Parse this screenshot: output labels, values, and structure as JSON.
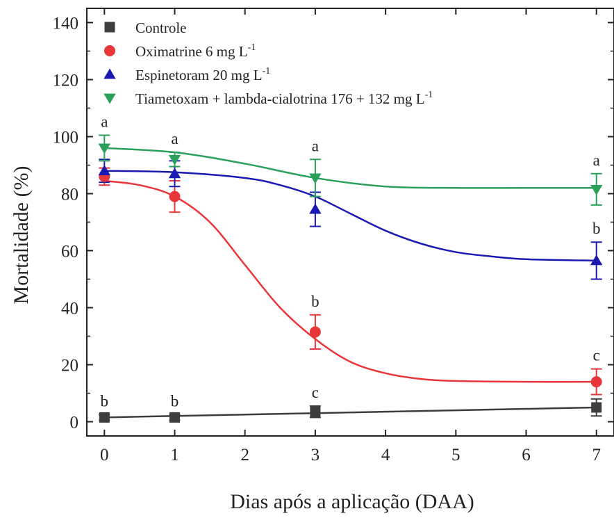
{
  "chart_data": {
    "type": "scatter",
    "title": "",
    "xlabel": "Dias após a aplicação (DAA)",
    "ylabel": "Mortalidade (%)",
    "xlim": [
      -0.25,
      7.25
    ],
    "ylim": [
      -5,
      145
    ],
    "xticks": [
      0,
      1,
      2,
      3,
      4,
      5,
      6,
      7
    ],
    "yticks": [
      0,
      20,
      40,
      60,
      80,
      100,
      120,
      140
    ],
    "legend_position": "top-left",
    "grid": false,
    "series": [
      {
        "key": "controle",
        "legend": {
          "text": "Controle",
          "sup": ""
        },
        "marker": "square",
        "color": "#3d3d3d",
        "x": [
          0,
          1,
          3,
          7
        ],
        "y": [
          1.5,
          1.5,
          3.5,
          5
        ],
        "error": [
          1,
          1,
          2,
          3
        ],
        "letters": [
          "b",
          "b",
          "c",
          ""
        ],
        "fit": [
          [
            0,
            1.5
          ],
          [
            1,
            2
          ],
          [
            2,
            2.5
          ],
          [
            3,
            3
          ],
          [
            4,
            3.5
          ],
          [
            5,
            4
          ],
          [
            6,
            4.5
          ],
          [
            7,
            5
          ]
        ]
      },
      {
        "key": "oximatrine",
        "legend": {
          "text": "Oximatrine 6 mg L",
          "sup": "-1"
        },
        "marker": "circle",
        "color": "#e8363a",
        "x": [
          0,
          1,
          3,
          7
        ],
        "y": [
          86,
          79,
          31.5,
          14
        ],
        "error": [
          3,
          5.5,
          6,
          4.5
        ],
        "letters": [
          "",
          "",
          "b",
          "c"
        ],
        "fit": [
          [
            0,
            84.5
          ],
          [
            0.5,
            83
          ],
          [
            1,
            79
          ],
          [
            1.5,
            70
          ],
          [
            2,
            55
          ],
          [
            2.5,
            40
          ],
          [
            3,
            29
          ],
          [
            3.5,
            21
          ],
          [
            4,
            17
          ],
          [
            4.5,
            15
          ],
          [
            5,
            14.3
          ],
          [
            6,
            14
          ],
          [
            7,
            14
          ]
        ]
      },
      {
        "key": "espinetoram",
        "legend": {
          "text": "Espinetoram 20 mg L",
          "sup": "-1"
        },
        "marker": "triangle-up",
        "color": "#1a1ab3",
        "x": [
          0,
          1,
          3,
          7
        ],
        "y": [
          88,
          87,
          74.5,
          56.5
        ],
        "error": [
          4,
          4.5,
          6,
          6.5
        ],
        "letters": [
          "",
          "",
          "",
          "b"
        ],
        "fit": [
          [
            0,
            88
          ],
          [
            1,
            87.5
          ],
          [
            2,
            85.5
          ],
          [
            2.5,
            83
          ],
          [
            3,
            79
          ],
          [
            3.5,
            73
          ],
          [
            4,
            67
          ],
          [
            4.5,
            62.5
          ],
          [
            5,
            59.5
          ],
          [
            5.5,
            58
          ],
          [
            6,
            57
          ],
          [
            7,
            56.5
          ]
        ]
      },
      {
        "key": "tiametoxam",
        "legend": {
          "text": "Tiametoxam + lambda-cialotrina 176 + 132 mg L",
          "sup": "-1"
        },
        "marker": "triangle-down",
        "color": "#2aa05a",
        "x": [
          0,
          1,
          3,
          7
        ],
        "y": [
          96,
          92,
          85.5,
          81.5
        ],
        "error": [
          4.5,
          2.5,
          6.5,
          5.5
        ],
        "letters": [
          "a",
          "a",
          "a",
          "a"
        ],
        "fit": [
          [
            0,
            96
          ],
          [
            1,
            94.5
          ],
          [
            2,
            90.5
          ],
          [
            3,
            85.5
          ],
          [
            4,
            82.5
          ],
          [
            5,
            82
          ],
          [
            6,
            82
          ],
          [
            7,
            82
          ]
        ]
      }
    ]
  }
}
